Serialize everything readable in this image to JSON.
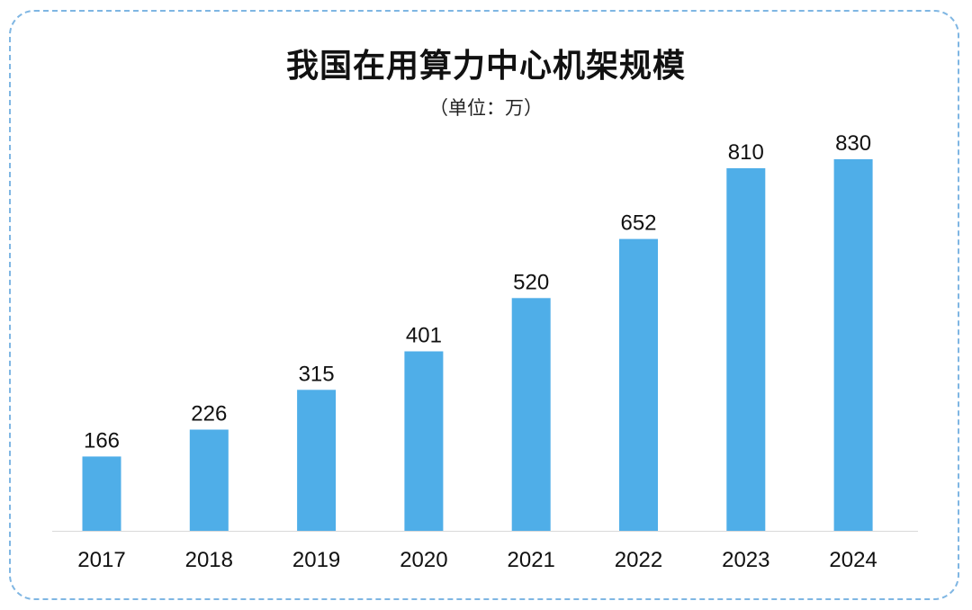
{
  "chart_data": {
    "type": "bar",
    "title": "我国在用算力中心机架规模",
    "subtitle": "（单位：万）",
    "categories": [
      "2017",
      "2018",
      "2019",
      "2020",
      "2021",
      "2022",
      "2023",
      "2024"
    ],
    "values": [
      166,
      226,
      315,
      401,
      520,
      652,
      810,
      830
    ],
    "xlabel": "",
    "ylabel": "",
    "ylim": [
      0,
      830
    ],
    "grid": false,
    "bar_color": "#4faee8",
    "axis_color": "#d9d9d9"
  }
}
